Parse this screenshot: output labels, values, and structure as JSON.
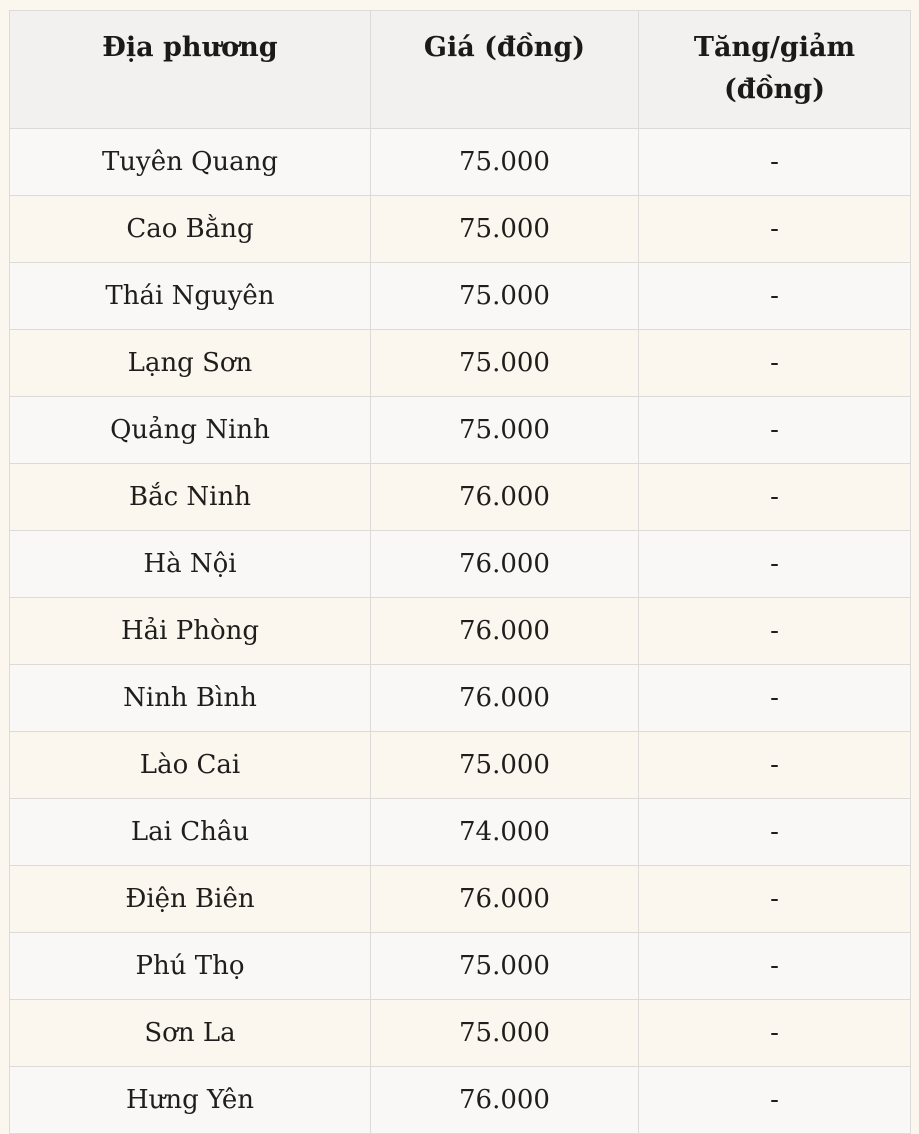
{
  "chart_data": {
    "type": "table",
    "columns": [
      "Địa phương",
      "Giá (đồng)",
      "Tăng/giảm (đồng)"
    ],
    "rows": [
      [
        "Tuyên Quang",
        "75.000",
        "-"
      ],
      [
        "Cao Bằng",
        "75.000",
        "-"
      ],
      [
        "Thái Nguyên",
        "75.000",
        "-"
      ],
      [
        "Lạng Sơn",
        "75.000",
        "-"
      ],
      [
        "Quảng Ninh",
        "75.000",
        "-"
      ],
      [
        "Bắc Ninh",
        "76.000",
        "-"
      ],
      [
        "Hà Nội",
        "76.000",
        "-"
      ],
      [
        "Hải Phòng",
        "76.000",
        "-"
      ],
      [
        "Ninh Bình",
        "76.000",
        "-"
      ],
      [
        "Lào Cai",
        "75.000",
        "-"
      ],
      [
        "Lai Châu",
        "74.000",
        "-"
      ],
      [
        "Điện Biên",
        "76.000",
        "-"
      ],
      [
        "Phú Thọ",
        "75.000",
        "-"
      ],
      [
        "Sơn La",
        "75.000",
        "-"
      ],
      [
        "Hưng Yên",
        "76.000",
        "-"
      ]
    ],
    "layout": {
      "legend": "none",
      "grid": "full-cell-borders",
      "row_striping": "odd-light-even-cream"
    }
  },
  "colors": {
    "page_background": "#fbf7ef",
    "header_background": "#f2f1ef",
    "row_odd_background": "#f9f8f6",
    "row_even_background": "#fbf6ee",
    "border": "#dcdbd8",
    "text": "#1f1e1c"
  }
}
